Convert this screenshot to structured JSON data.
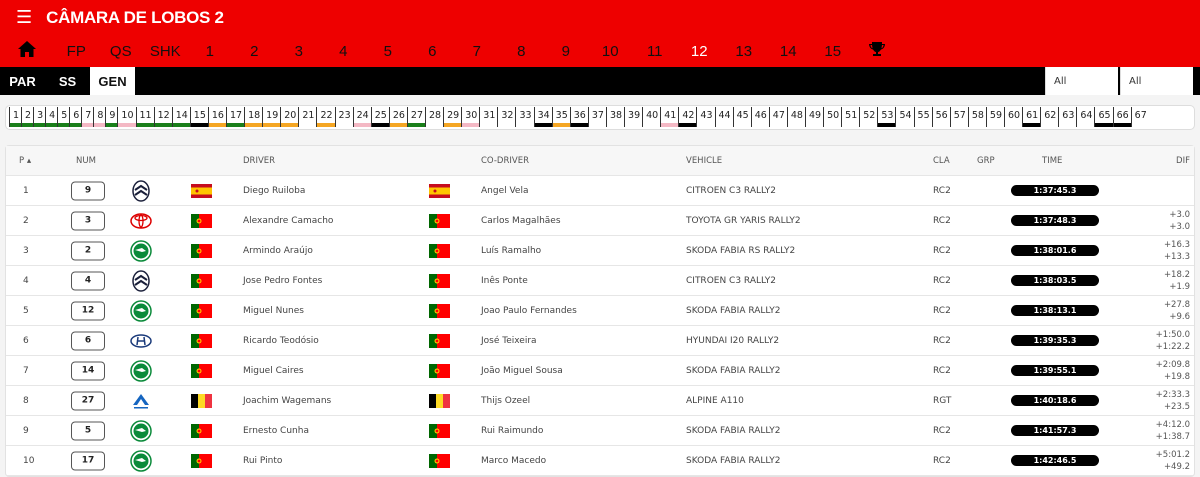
{
  "header": {
    "title": "CÂMARA DE LOBOS 2",
    "menu_icon": "hamburger-icon"
  },
  "nav": {
    "items": [
      "FP",
      "QS",
      "SHK",
      "1",
      "2",
      "3",
      "4",
      "5",
      "6",
      "7",
      "8",
      "9",
      "10",
      "11",
      "12",
      "13",
      "14",
      "15"
    ],
    "active": "12",
    "home_icon": "home-icon",
    "trophy_icon": "trophy-icon"
  },
  "tabs": {
    "items": [
      "PAR",
      "SS",
      "GEN"
    ],
    "active": "GEN"
  },
  "filters": {
    "filter1": "All",
    "filter2": "All"
  },
  "stages": [
    [
      "1",
      "green"
    ],
    [
      "2",
      "green"
    ],
    [
      "3",
      "green"
    ],
    [
      "4",
      "green"
    ],
    [
      "5",
      "green"
    ],
    [
      "6",
      "green"
    ],
    [
      "7",
      "pink"
    ],
    [
      "8",
      "pink"
    ],
    [
      "9",
      "green"
    ],
    [
      "10",
      "pink"
    ],
    [
      "11",
      "green"
    ],
    [
      "12",
      "green"
    ],
    [
      "14",
      "green"
    ],
    [
      "15",
      "black"
    ],
    [
      "16",
      "orange"
    ],
    [
      "17",
      "green"
    ],
    [
      "18",
      "orange"
    ],
    [
      "19",
      "orange"
    ],
    [
      "20",
      "orange"
    ],
    [
      "21",
      ""
    ],
    [
      "22",
      "orange"
    ],
    [
      "23",
      ""
    ],
    [
      "24",
      "pink"
    ],
    [
      "25",
      "black"
    ],
    [
      "26",
      "orange"
    ],
    [
      "27",
      "green"
    ],
    [
      "28",
      ""
    ],
    [
      "29",
      "orange"
    ],
    [
      "30",
      "pink"
    ],
    [
      "31",
      ""
    ],
    [
      "32",
      ""
    ],
    [
      "33",
      ""
    ],
    [
      "34",
      "black"
    ],
    [
      "35",
      "orange"
    ],
    [
      "36",
      "black"
    ],
    [
      "37",
      ""
    ],
    [
      "38",
      ""
    ],
    [
      "39",
      ""
    ],
    [
      "40",
      ""
    ],
    [
      "41",
      "pink"
    ],
    [
      "42",
      "black"
    ],
    [
      "43",
      ""
    ],
    [
      "44",
      ""
    ],
    [
      "45",
      ""
    ],
    [
      "46",
      ""
    ],
    [
      "47",
      ""
    ],
    [
      "48",
      ""
    ],
    [
      "49",
      ""
    ],
    [
      "50",
      ""
    ],
    [
      "51",
      ""
    ],
    [
      "52",
      ""
    ],
    [
      "53",
      "black"
    ],
    [
      "54",
      ""
    ],
    [
      "55",
      ""
    ],
    [
      "56",
      ""
    ],
    [
      "57",
      ""
    ],
    [
      "58",
      ""
    ],
    [
      "59",
      ""
    ],
    [
      "60",
      ""
    ],
    [
      "61",
      "black"
    ],
    [
      "62",
      ""
    ],
    [
      "63",
      ""
    ],
    [
      "64",
      ""
    ],
    [
      "65",
      "black"
    ],
    [
      "66",
      "black"
    ],
    [
      "67",
      ""
    ]
  ],
  "colors": {
    "green": "#1a7f1a",
    "pink": "#f4b8c4",
    "black": "#000000",
    "orange": "#f5a623",
    "brand": "#ee0000"
  },
  "table": {
    "headers": {
      "p": "P",
      "num": "NUM",
      "driver": "DRIVER",
      "codriver": "CO-DRIVER",
      "vehicle": "VEHICLE",
      "cla": "CLA",
      "grp": "GRP",
      "time": "TIME",
      "dif": "DIF"
    },
    "rows": [
      {
        "p": "1",
        "num": "9",
        "brand": "citroen",
        "flag": "es",
        "driver": "Diego Ruiloba",
        "coflag": "es",
        "codriver": "Angel Vela",
        "vehicle": "CITROEN C3 RALLY2",
        "cla": "RC2",
        "grp": "",
        "time": "1:37:45.3",
        "dif1": "",
        "dif2": ""
      },
      {
        "p": "2",
        "num": "3",
        "brand": "toyota",
        "flag": "pt",
        "driver": "Alexandre Camacho",
        "coflag": "pt",
        "codriver": "Carlos Magalhães",
        "vehicle": "TOYOTA GR YARIS RALLY2",
        "cla": "RC2",
        "grp": "",
        "time": "1:37:48.3",
        "dif1": "+3.0",
        "dif2": "+3.0"
      },
      {
        "p": "3",
        "num": "2",
        "brand": "skoda",
        "flag": "pt",
        "driver": "Armindo Araújo",
        "coflag": "pt",
        "codriver": "Luís Ramalho",
        "vehicle": "SKODA FABIA RS RALLY2",
        "cla": "RC2",
        "grp": "",
        "time": "1:38:01.6",
        "dif1": "+16.3",
        "dif2": "+13.3"
      },
      {
        "p": "4",
        "num": "4",
        "brand": "citroen",
        "flag": "pt",
        "driver": "Jose Pedro Fontes",
        "coflag": "pt",
        "codriver": "Inês Ponte",
        "vehicle": "CITROEN C3 RALLY2",
        "cla": "RC2",
        "grp": "",
        "time": "1:38:03.5",
        "dif1": "+18.2",
        "dif2": "+1.9"
      },
      {
        "p": "5",
        "num": "12",
        "brand": "skoda",
        "flag": "pt",
        "driver": "Miguel Nunes",
        "coflag": "pt",
        "codriver": "Joao Paulo Fernandes",
        "vehicle": "SKODA FABIA RALLY2",
        "cla": "RC2",
        "grp": "",
        "time": "1:38:13.1",
        "dif1": "+27.8",
        "dif2": "+9.6"
      },
      {
        "p": "6",
        "num": "6",
        "brand": "hyundai",
        "flag": "pt",
        "driver": "Ricardo Teodósio",
        "coflag": "pt",
        "codriver": "José Teixeira",
        "vehicle": "HYUNDAI I20 RALLY2",
        "cla": "RC2",
        "grp": "",
        "time": "1:39:35.3",
        "dif1": "+1:50.0",
        "dif2": "+1:22.2"
      },
      {
        "p": "7",
        "num": "14",
        "brand": "skoda",
        "flag": "pt",
        "driver": "Miguel Caires",
        "coflag": "pt",
        "codriver": "João Miguel Sousa",
        "vehicle": "SKODA FABIA RALLY2",
        "cla": "RC2",
        "grp": "",
        "time": "1:39:55.1",
        "dif1": "+2:09.8",
        "dif2": "+19.8"
      },
      {
        "p": "8",
        "num": "27",
        "brand": "alpine",
        "flag": "be",
        "driver": "Joachim Wagemans",
        "coflag": "be",
        "codriver": "Thijs Ozeel",
        "vehicle": "ALPINE A110",
        "cla": "RGT",
        "grp": "",
        "time": "1:40:18.6",
        "dif1": "+2:33.3",
        "dif2": "+23.5"
      },
      {
        "p": "9",
        "num": "5",
        "brand": "skoda",
        "flag": "pt",
        "driver": "Ernesto Cunha",
        "coflag": "pt",
        "codriver": "Rui Raimundo",
        "vehicle": "SKODA FABIA RALLY2",
        "cla": "RC2",
        "grp": "",
        "time": "1:41:57.3",
        "dif1": "+4:12.0",
        "dif2": "+1:38.7"
      },
      {
        "p": "10",
        "num": "17",
        "brand": "skoda",
        "flag": "pt",
        "driver": "Rui Pinto",
        "coflag": "pt",
        "codriver": "Marco Macedo",
        "vehicle": "SKODA FABIA RALLY2",
        "cla": "RC2",
        "grp": "",
        "time": "1:42:46.5",
        "dif1": "+5:01.2",
        "dif2": "+49.2"
      }
    ]
  }
}
